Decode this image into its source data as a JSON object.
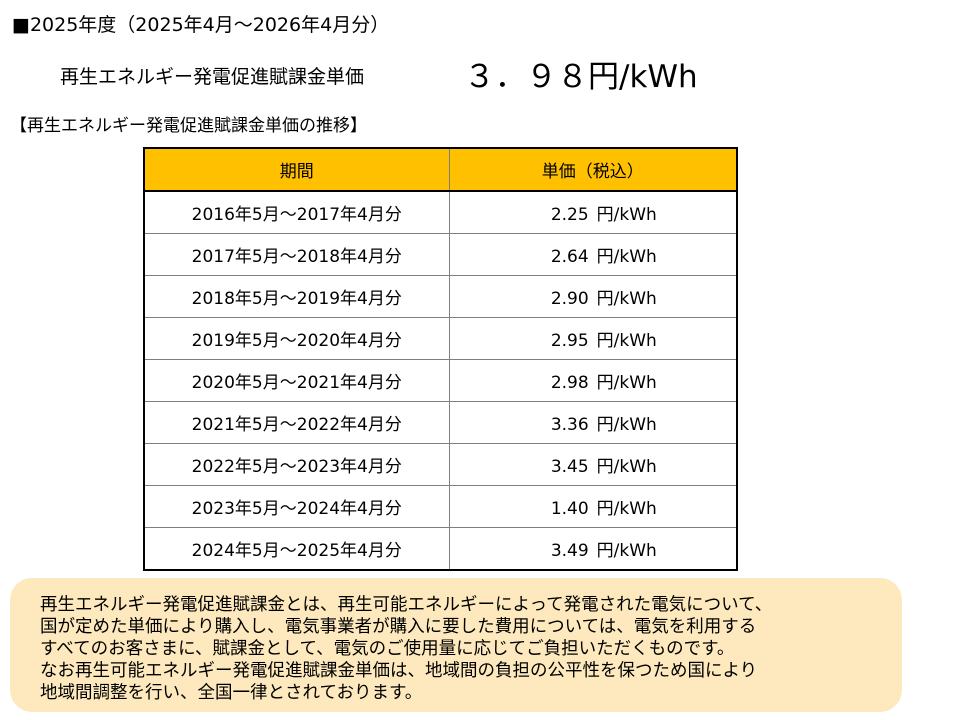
{
  "header": {
    "fiscal_year_line": "■2025年度（2025年4月～2026年4月分）"
  },
  "current_price": {
    "label": "再生エネルギー発電促進賦課金単価",
    "value": "３．９８円/kWh"
  },
  "history": {
    "title": "【再生エネルギー発電促進賦課金単価の推移】",
    "header_bg_color": "#ffc000",
    "columns": [
      "期間",
      "単価（税込）"
    ],
    "rows": [
      {
        "period": "2016年5月～2017年4月分",
        "price": "2.25",
        "unit": "円/kWh"
      },
      {
        "period": "2017年5月～2018年4月分",
        "price": "2.64",
        "unit": "円/kWh"
      },
      {
        "period": "2018年5月～2019年4月分",
        "price": "2.90",
        "unit": "円/kWh"
      },
      {
        "period": "2019年5月～2020年4月分",
        "price": "2.95",
        "unit": "円/kWh"
      },
      {
        "period": "2020年5月～2021年4月分",
        "price": "2.98",
        "unit": "円/kWh"
      },
      {
        "period": "2021年5月～2022年4月分",
        "price": "3.36",
        "unit": "円/kWh"
      },
      {
        "period": "2022年5月～2023年4月分",
        "price": "3.45",
        "unit": "円/kWh"
      },
      {
        "period": "2023年5月～2024年4月分",
        "price": "1.40",
        "unit": "円/kWh"
      },
      {
        "period": "2024年5月～2025年4月分",
        "price": "3.49",
        "unit": "円/kWh"
      }
    ]
  },
  "note": {
    "bg_color": "#fde9bd",
    "lines": [
      "再生エネルギー発電促進賦課金とは、再生可能エネルギーによって発電された電気について、",
      "国が定めた単価により購入し、電気事業者が購入に要した費用については、電気を利用する",
      "すべてのお客さまに、賦課金として、電気のご使用量に応じてご負担いただくものです。",
      "なお再生可能エネルギー発電促進賦課金単価は、地域間の負担の公平性を保つため国により",
      "地域間調整を行い、全国一律とされております。"
    ]
  }
}
